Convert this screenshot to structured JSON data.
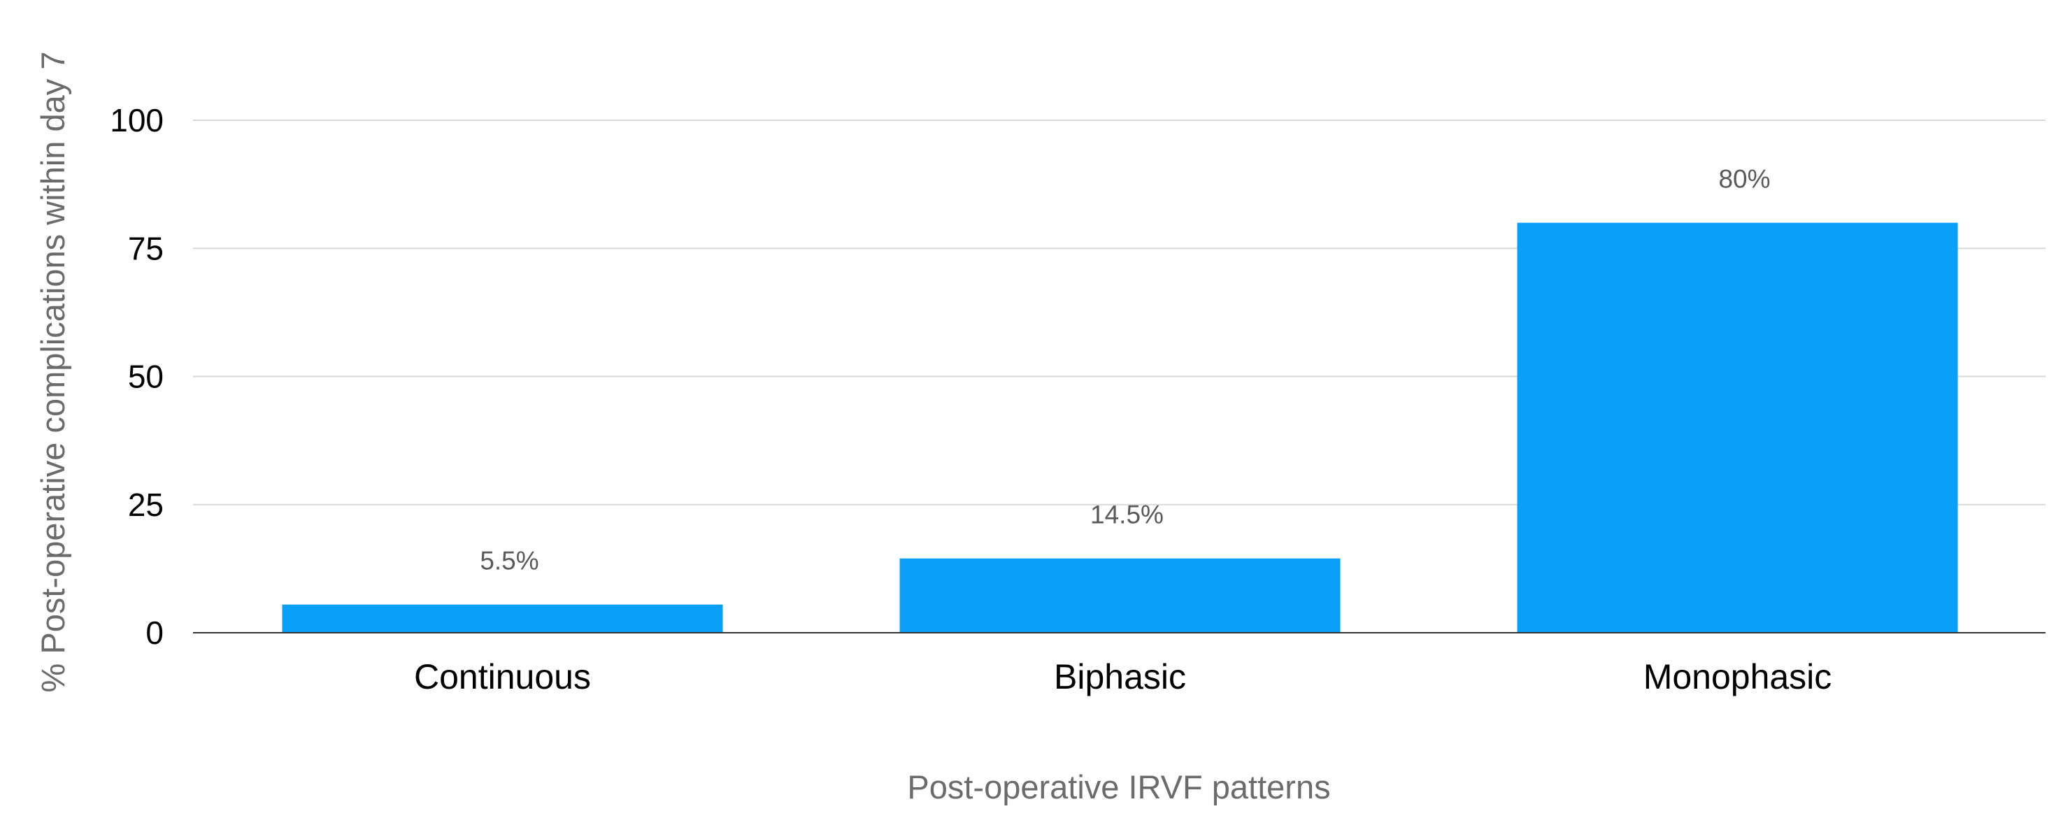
{
  "chart_data": {
    "type": "bar",
    "title": "",
    "xlabel": "Post-operative IRVF patterns",
    "ylabel": "% Post-operative complications within day 7",
    "categories": [
      "Continuous",
      "Biphasic",
      "Monophasic"
    ],
    "values": [
      5.5,
      14.5,
      80
    ],
    "data_labels": [
      "5.5%",
      "14.5%",
      "80%"
    ],
    "yticks": [
      "0",
      "25",
      "50",
      "75",
      "100"
    ],
    "ytick_values": [
      0,
      25,
      50,
      75,
      100
    ],
    "ylim": [
      0,
      100
    ],
    "grid": true,
    "bar_color": "#0aa0fa"
  }
}
